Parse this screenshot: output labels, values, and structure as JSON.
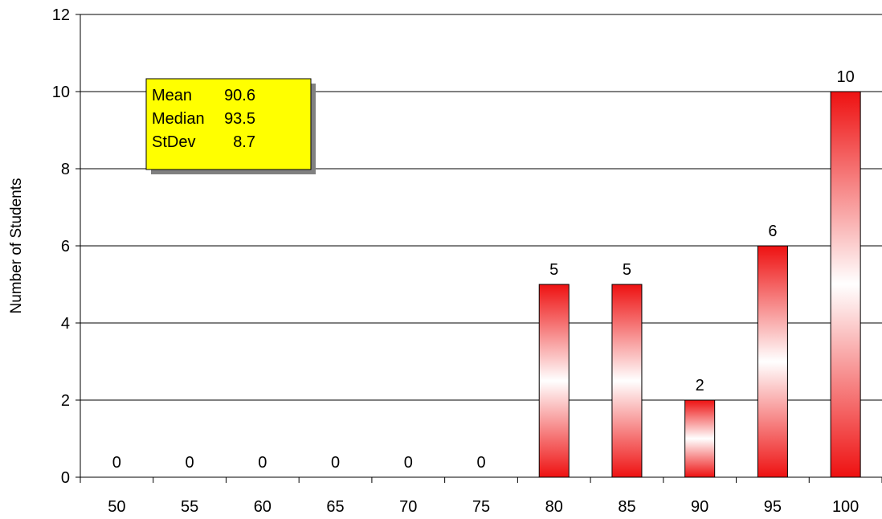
{
  "chart_data": {
    "type": "bar",
    "categories": [
      "50",
      "55",
      "60",
      "65",
      "70",
      "75",
      "80",
      "85",
      "90",
      "95",
      "100"
    ],
    "values": [
      0,
      0,
      0,
      0,
      0,
      0,
      5,
      5,
      2,
      6,
      10
    ],
    "data_labels": [
      "0",
      "0",
      "0",
      "0",
      "0",
      "0",
      "5",
      "5",
      "2",
      "6",
      "10"
    ],
    "xlabel": "",
    "ylabel": "Number of Students",
    "ylim": [
      0,
      12
    ],
    "yticks": [
      "0",
      "2",
      "4",
      "6",
      "8",
      "10",
      "12"
    ],
    "grid": true,
    "legend": "none",
    "bar_color": "#ee1111",
    "annotation": {
      "rows": [
        {
          "label": "Mean",
          "value": "90.6"
        },
        {
          "label": "Median",
          "value": "93.5"
        },
        {
          "label": "StDev",
          "value": "8.7"
        }
      ],
      "background": "#ffff00"
    }
  }
}
